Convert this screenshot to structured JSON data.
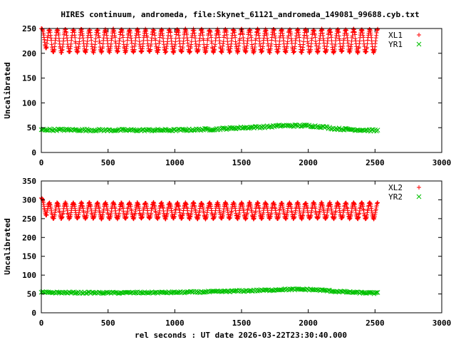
{
  "chart_data": [
    {
      "type": "scatter",
      "title": "HIRES continuum, andromeda, file:Skynet_61121_andromeda_149081_99688.cyb.txt",
      "xlabel": "",
      "ylabel": "Uncalibrated",
      "xlim": [
        0,
        3000
      ],
      "ylim": [
        0,
        250
      ],
      "xticks": [
        0,
        500,
        1000,
        1500,
        2000,
        2500,
        3000
      ],
      "yticks": [
        0,
        50,
        100,
        150,
        200,
        250
      ],
      "legend_position": "top-right",
      "series": [
        {
          "name": "XL1",
          "marker": "+",
          "color": "#ff0000",
          "x_range": [
            0,
            2520
          ],
          "oscillation": {
            "low": 202,
            "high": 248,
            "period": 60,
            "start_value": 250
          }
        },
        {
          "name": "YR1",
          "marker": "x",
          "color": "#00c000",
          "x": [
            0,
            500,
            1000,
            1300,
            1500,
            1700,
            1800,
            1900,
            2000,
            2100,
            2200,
            2350,
            2520
          ],
          "y": [
            46,
            45,
            45,
            47,
            50,
            52,
            54,
            54,
            54,
            52,
            48,
            46,
            44
          ],
          "noise": 2
        }
      ]
    },
    {
      "type": "scatter",
      "title": "",
      "xlabel": "rel seconds : UT date 2026-03-22T23:30:40.000",
      "ylabel": "Uncalibrated",
      "xlim": [
        0,
        3000
      ],
      "ylim": [
        0,
        350
      ],
      "xticks": [
        0,
        500,
        1000,
        1500,
        2000,
        2500,
        3000
      ],
      "yticks": [
        0,
        50,
        100,
        150,
        200,
        250,
        300,
        350
      ],
      "legend_position": "top-right",
      "series": [
        {
          "name": "XL2",
          "marker": "+",
          "color": "#ff0000",
          "x_range": [
            0,
            2520
          ],
          "oscillation": {
            "low": 250,
            "high": 292,
            "period": 60,
            "start_value": 305
          }
        },
        {
          "name": "YR2",
          "marker": "x",
          "color": "#00c000",
          "x": [
            0,
            500,
            1000,
            1300,
            1500,
            1700,
            1800,
            1900,
            2000,
            2100,
            2200,
            2350,
            2520
          ],
          "y": [
            54,
            53,
            54,
            56,
            58,
            60,
            62,
            62,
            62,
            60,
            57,
            54,
            52
          ],
          "noise": 2
        }
      ]
    }
  ]
}
